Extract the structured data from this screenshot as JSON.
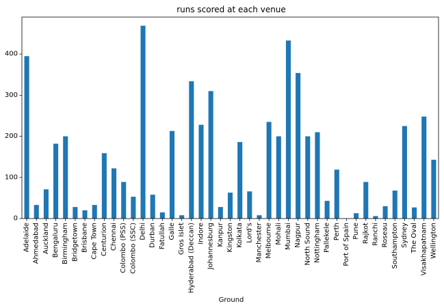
{
  "chart_data": {
    "type": "bar",
    "title": "runs scored at each venue",
    "xlabel": "Ground",
    "ylabel": "",
    "ylim": [
      0,
      490
    ],
    "yticks": [
      0,
      100,
      200,
      300,
      400
    ],
    "grid": false,
    "legend": "none",
    "bar_color": "#1f77b4",
    "categories": [
      "Adelaide",
      "Ahmedabad",
      "Auckland",
      "Bengaluru",
      "Birmingham",
      "Bridgetown",
      "Brisbane",
      "Cape Town",
      "Centurion",
      "Chennai",
      "Colombo (PSS)",
      "Colombo (SSC)",
      "Delhi",
      "Durban",
      "Fatullah",
      "Galle",
      "Gros Islet",
      "Hyderabad (Deccan)",
      "Indore",
      "Johannesburg",
      "Kanpur",
      "Kingston",
      "Kolkata",
      "Lord's",
      "Manchester",
      "Melbourne",
      "Mohali",
      "Mumbai",
      "Nagpur",
      "North Sound",
      "Nottingham",
      "Pallekele",
      "Perth",
      "Port of Spain",
      "Pune",
      "Rajkot",
      "Ranchi",
      "Roseau",
      "Southampton",
      "Sydney",
      "The Oval",
      "Visakhapatnam",
      "Wellington"
    ],
    "values": [
      395,
      33,
      71,
      182,
      200,
      28,
      20,
      33,
      159,
      122,
      89,
      53,
      469,
      58,
      15,
      213,
      8,
      334,
      228,
      310,
      28,
      63,
      186,
      66,
      8,
      235,
      200,
      433,
      354,
      200,
      210,
      43,
      119,
      0,
      13,
      89,
      6,
      30,
      68,
      225,
      27,
      248,
      143
    ]
  }
}
